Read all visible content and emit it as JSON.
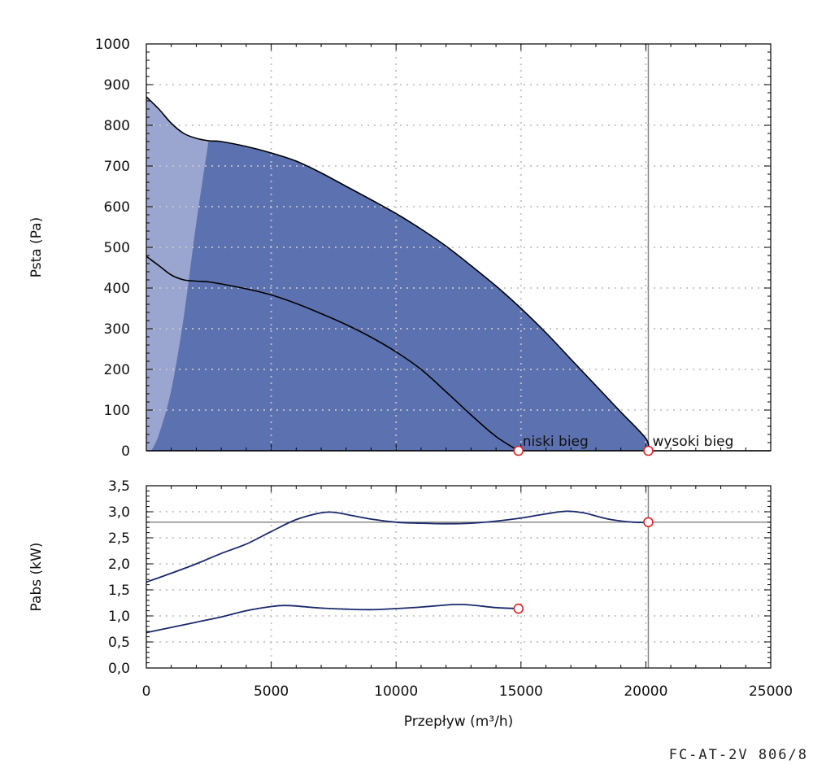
{
  "chart_data": [
    {
      "type": "area",
      "ylabel": "Psta (Pa)",
      "xlim": [
        0,
        25000
      ],
      "ylim": [
        0,
        1000
      ],
      "grid": true,
      "x_ticks": [
        0,
        5000,
        10000,
        15000,
        20000,
        25000
      ],
      "y_ticks": [
        0,
        100,
        200,
        300,
        400,
        500,
        600,
        700,
        800,
        900,
        1000
      ],
      "y_tick_labels": [
        "0",
        "100",
        "200",
        "300",
        "400",
        "500",
        "600",
        "700",
        "800",
        "900",
        "1000"
      ],
      "vertical_reference_x": 20100,
      "colors": {
        "envelope": "#9aa6cf",
        "working_area": "#5c72b0",
        "curve": "#000000",
        "marker": "#e02020"
      },
      "series": [
        {
          "name": "wysoki bieg",
          "x": [
            0,
            500,
            1000,
            1500,
            2000,
            2500,
            3000,
            4000,
            5000,
            6000,
            7000,
            8000,
            9000,
            10000,
            11000,
            12000,
            13000,
            14000,
            15000,
            16000,
            17000,
            18000,
            19000,
            20000,
            20100
          ],
          "y": [
            870,
            840,
            805,
            780,
            768,
            762,
            760,
            748,
            732,
            712,
            683,
            650,
            617,
            583,
            545,
            503,
            455,
            405,
            350,
            290,
            225,
            160,
            95,
            30,
            0
          ]
        },
        {
          "name": "niski bieg",
          "x": [
            0,
            500,
            1000,
            1500,
            2000,
            2500,
            3000,
            4000,
            5000,
            6000,
            7000,
            8000,
            9000,
            10000,
            11000,
            12000,
            13000,
            14000,
            14900
          ],
          "y": [
            478,
            455,
            432,
            420,
            417,
            415,
            410,
            398,
            383,
            362,
            337,
            310,
            279,
            243,
            200,
            145,
            88,
            35,
            0
          ]
        }
      ],
      "envelope_left_boundary": {
        "x": [
          200,
          500,
          1000,
          1500,
          2000,
          2500
        ],
        "y": [
          0,
          40,
          150,
          330,
          560,
          765
        ]
      },
      "operating_points": [
        {
          "label": "niski bieg",
          "x": 14900,
          "y": 0
        },
        {
          "label": "wysoki bieg",
          "x": 20100,
          "y": 0
        }
      ]
    },
    {
      "type": "line",
      "xlabel": "Przepływ (m³/h)",
      "ylabel": "Pabs (kW)",
      "xlim": [
        0,
        25000
      ],
      "ylim": [
        0,
        3.5
      ],
      "grid": true,
      "x_ticks": [
        0,
        5000,
        10000,
        15000,
        20000,
        25000
      ],
      "x_tick_labels": [
        "0",
        "5000",
        "10000",
        "15000",
        "20000",
        "25000"
      ],
      "y_ticks": [
        0,
        0.5,
        1.0,
        1.5,
        2.0,
        2.5,
        3.0,
        3.5
      ],
      "y_tick_labels": [
        "0,0",
        "0,5",
        "1,0",
        "1,5",
        "2,0",
        "2,5",
        "3,0",
        "3,5"
      ],
      "horizontal_reference_y": 2.8,
      "vertical_reference_x": 20100,
      "colors": {
        "curve": "#1a2a6c",
        "marker": "#e02020",
        "reference": "#888888"
      },
      "series": [
        {
          "name": "wysoki bieg",
          "x": [
            0,
            1000,
            2000,
            3000,
            4000,
            5000,
            6000,
            7000,
            7500,
            8000,
            9000,
            10000,
            11000,
            12000,
            13000,
            14000,
            15000,
            16000,
            16800,
            17500,
            18500,
            19500,
            20100
          ],
          "y": [
            1.65,
            1.82,
            2.0,
            2.2,
            2.38,
            2.62,
            2.85,
            2.98,
            2.99,
            2.95,
            2.86,
            2.8,
            2.78,
            2.77,
            2.78,
            2.82,
            2.88,
            2.96,
            3.01,
            2.98,
            2.86,
            2.8,
            2.8
          ]
        },
        {
          "name": "niski bieg",
          "x": [
            0,
            1000,
            2000,
            3000,
            4000,
            5000,
            5500,
            6000,
            7000,
            8000,
            9000,
            10000,
            11000,
            12000,
            12500,
            13000,
            14000,
            14900
          ],
          "y": [
            0.68,
            0.78,
            0.88,
            0.98,
            1.1,
            1.18,
            1.2,
            1.19,
            1.15,
            1.13,
            1.12,
            1.14,
            1.17,
            1.21,
            1.22,
            1.21,
            1.16,
            1.14
          ]
        }
      ],
      "operating_points": [
        {
          "label": "niski bieg",
          "x": 14900,
          "y": 1.14
        },
        {
          "label": "wysoki bieg",
          "x": 20100,
          "y": 2.8
        }
      ]
    }
  ],
  "footer": {
    "model_code": "FC-AT-2V 806/8"
  }
}
